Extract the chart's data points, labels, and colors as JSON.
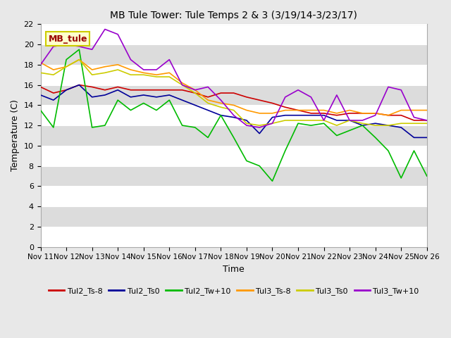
{
  "title": "MB Tule Tower: Tule Temps 2 & 3 (3/19/14-3/23/17)",
  "xlabel": "Time",
  "ylabel": "Temperature (C)",
  "ylim": [
    0,
    22
  ],
  "yticks": [
    0,
    2,
    4,
    6,
    8,
    10,
    12,
    14,
    16,
    18,
    20,
    22
  ],
  "xtick_labels": [
    "Nov 11",
    "Nov 12",
    "Nov 13",
    "Nov 14",
    "Nov 15",
    "Nov 16",
    "Nov 17",
    "Nov 18",
    "Nov 19",
    "Nov 20",
    "Nov 21",
    "Nov 22",
    "Nov 23",
    "Nov 24",
    "Nov 25",
    "Nov 26"
  ],
  "bg_color": "#e8e8e8",
  "stripe_light": "#ffffff",
  "stripe_dark": "#dcdcdc",
  "annotation_text": "MB_tule",
  "annotation_color": "#990000",
  "annotation_bg": "#ffffcc",
  "annotation_edge": "#cccc00",
  "series_order": [
    "Tul2_Ts-8",
    "Tul2_Ts0",
    "Tul2_Tw+10",
    "Tul3_Ts-8",
    "Tul3_Ts0",
    "Tul3_Tw+10"
  ],
  "series_colors": {
    "Tul2_Ts-8": "#cc0000",
    "Tul2_Ts0": "#000099",
    "Tul2_Tw+10": "#00bb00",
    "Tul3_Ts-8": "#ff9900",
    "Tul3_Ts0": "#cccc00",
    "Tul3_Tw+10": "#9900cc"
  },
  "Tul2_Ts-8_x": [
    0,
    0.5,
    1,
    1.5,
    2,
    2.5,
    3,
    3.5,
    4,
    4.5,
    5,
    5.5,
    6,
    6.5,
    7,
    7.5,
    8,
    8.5,
    9,
    9.5,
    10,
    10.5,
    11,
    11.5,
    12,
    12.5,
    13,
    13.5,
    14,
    14.5,
    15
  ],
  "Tul2_Ts-8_y": [
    15.8,
    15.2,
    15.5,
    16.0,
    15.8,
    15.5,
    15.8,
    15.5,
    15.5,
    15.5,
    15.5,
    15.5,
    15.2,
    14.8,
    15.2,
    15.2,
    14.8,
    14.5,
    14.2,
    13.8,
    13.5,
    13.2,
    13.2,
    13.0,
    13.2,
    13.2,
    13.2,
    13.0,
    13.0,
    12.5,
    12.5
  ],
  "Tul2_Ts0_x": [
    0,
    0.5,
    1,
    1.5,
    2,
    2.5,
    3,
    3.5,
    4,
    4.5,
    5,
    5.5,
    6,
    6.5,
    7,
    7.5,
    8,
    8.5,
    9,
    9.5,
    10,
    10.5,
    11,
    11.5,
    12,
    12.5,
    13,
    13.5,
    14,
    14.5,
    15
  ],
  "Tul2_Ts0_y": [
    15.0,
    14.5,
    15.5,
    16.0,
    14.8,
    15.0,
    15.5,
    14.8,
    15.0,
    14.8,
    15.0,
    14.5,
    14.0,
    13.5,
    13.0,
    12.8,
    12.5,
    11.2,
    12.8,
    13.0,
    13.0,
    13.0,
    13.0,
    12.5,
    12.5,
    12.0,
    12.2,
    12.0,
    11.8,
    10.8,
    10.8
  ],
  "Tul2_Tw+10_x": [
    0,
    0.5,
    1,
    1.5,
    2,
    2.5,
    3,
    3.5,
    4,
    4.5,
    5,
    5.5,
    6,
    6.5,
    7,
    7.5,
    8,
    8.5,
    9,
    9.5,
    10,
    10.5,
    11,
    11.5,
    12,
    12.5,
    13,
    13.5,
    14,
    14.5,
    15
  ],
  "Tul2_Tw+10_y": [
    13.5,
    11.8,
    18.5,
    19.5,
    11.8,
    12.0,
    14.5,
    13.5,
    14.2,
    13.5,
    14.5,
    12.0,
    11.8,
    10.8,
    13.0,
    10.8,
    8.5,
    8.0,
    6.5,
    9.5,
    12.2,
    12.0,
    12.2,
    11.0,
    11.5,
    12.0,
    10.8,
    9.5,
    6.8,
    9.5,
    7.0
  ],
  "Tul3_Ts-8_x": [
    0,
    0.5,
    1,
    1.5,
    2,
    2.5,
    3,
    3.5,
    4,
    4.5,
    5,
    5.5,
    6,
    6.5,
    7,
    7.5,
    8,
    8.5,
    9,
    9.5,
    10,
    10.5,
    11,
    11.5,
    12,
    12.5,
    13,
    13.5,
    14,
    14.5,
    15
  ],
  "Tul3_Ts-8_y": [
    18.2,
    17.5,
    17.8,
    18.5,
    17.5,
    17.8,
    18.0,
    17.5,
    17.2,
    17.0,
    17.2,
    16.2,
    15.5,
    14.5,
    14.2,
    14.0,
    13.5,
    13.2,
    13.2,
    13.5,
    13.5,
    13.5,
    13.5,
    13.2,
    13.5,
    13.2,
    13.2,
    13.0,
    13.5,
    13.5,
    13.5
  ],
  "Tul3_Ts0_x": [
    0,
    0.5,
    1,
    1.5,
    2,
    2.5,
    3,
    3.5,
    4,
    4.5,
    5,
    5.5,
    6,
    6.5,
    7,
    7.5,
    8,
    8.5,
    9,
    9.5,
    10,
    10.5,
    11,
    11.5,
    12,
    12.5,
    13,
    13.5,
    14,
    14.5,
    15
  ],
  "Tul3_Ts0_y": [
    17.2,
    17.0,
    17.8,
    18.5,
    17.0,
    17.2,
    17.5,
    17.0,
    17.0,
    16.8,
    16.8,
    16.0,
    15.2,
    14.2,
    13.8,
    13.5,
    12.2,
    12.0,
    12.2,
    12.5,
    12.5,
    12.5,
    12.5,
    12.0,
    12.5,
    12.2,
    12.0,
    12.0,
    12.2,
    12.2,
    12.2
  ],
  "Tul3_Tw+10_x": [
    0,
    0.5,
    1,
    1.5,
    2,
    2.5,
    3,
    3.5,
    4,
    4.5,
    5,
    5.5,
    6,
    6.5,
    7,
    7.5,
    8,
    8.5,
    9,
    9.5,
    10,
    10.5,
    11,
    11.5,
    12,
    12.5,
    13,
    13.5,
    14,
    14.5,
    15
  ],
  "Tul3_Tw+10_y": [
    18.0,
    19.8,
    20.0,
    19.8,
    19.5,
    21.5,
    21.0,
    18.5,
    17.5,
    17.5,
    18.5,
    16.0,
    15.5,
    15.8,
    14.5,
    13.0,
    12.0,
    11.8,
    12.2,
    14.8,
    15.5,
    14.8,
    12.5,
    15.0,
    12.5,
    12.5,
    13.0,
    15.8,
    15.5,
    12.8,
    12.5
  ]
}
